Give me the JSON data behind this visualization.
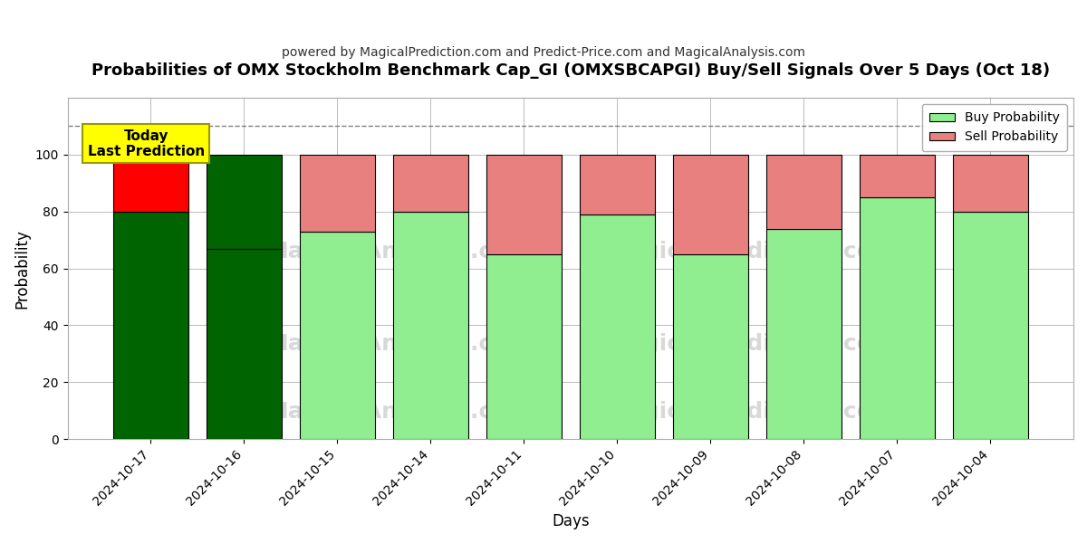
{
  "title": "Probabilities of OMX Stockholm Benchmark Cap_GI (OMXSBCAPGI) Buy/Sell Signals Over 5 Days (Oct 18)",
  "subtitle": "powered by MagicalPrediction.com and Predict-Price.com and MagicalAnalysis.com",
  "xlabel": "Days",
  "ylabel": "Probability",
  "dates": [
    "2024-10-17",
    "2024-10-16",
    "2024-10-15",
    "2024-10-14",
    "2024-10-11",
    "2024-10-10",
    "2024-10-09",
    "2024-10-08",
    "2024-10-07",
    "2024-10-04"
  ],
  "buy_values": [
    80,
    67,
    73,
    80,
    65,
    79,
    65,
    74,
    85,
    80
  ],
  "sell_values": [
    20,
    33,
    27,
    20,
    35,
    21,
    35,
    26,
    15,
    20
  ],
  "buy_color_today": "#006400",
  "sell_color_today": "#FF0000",
  "buy_color_yesterday": "#006400",
  "sell_color_yesterday": "#006400",
  "buy_color_normal": "#90EE90",
  "sell_color_normal": "#E88080",
  "today_box_color": "#FFFF00",
  "today_box_text": "Today\nLast Prediction",
  "ylim": [
    0,
    120
  ],
  "yticks": [
    0,
    20,
    40,
    60,
    80,
    100
  ],
  "dashed_line_y": 110,
  "legend_buy_color": "#90EE90",
  "legend_sell_color": "#E88080",
  "bar_edgecolor": "black",
  "bar_linewidth": 0.8,
  "background_color": "#ffffff",
  "grid_color": "#bbbbbb",
  "watermark_color": "#d8d8d8"
}
